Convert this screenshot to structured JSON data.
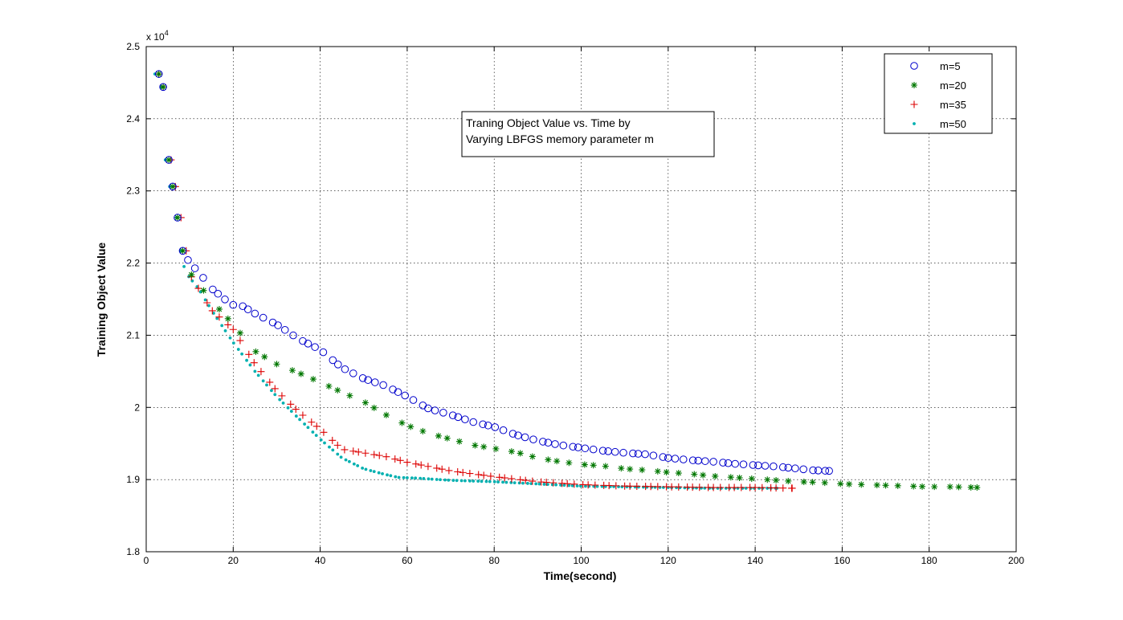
{
  "chart_data": {
    "type": "scatter",
    "title": "",
    "xlabel": "Time(second)",
    "ylabel": "Training Object Value",
    "xlim": [
      0,
      200
    ],
    "ylim": [
      18000,
      25000
    ],
    "x_ticks": [
      0,
      20,
      40,
      60,
      80,
      100,
      120,
      140,
      160,
      180,
      200
    ],
    "y_ticks": [
      18000,
      19000,
      20000,
      21000,
      22000,
      23000,
      24000,
      25000
    ],
    "x_tick_labels": [
      "0",
      "20",
      "40",
      "60",
      "80",
      "100",
      "120",
      "140",
      "160",
      "180",
      "200"
    ],
    "y_tick_labels": [
      "1.8",
      "1.9",
      "2",
      "2.1",
      "2.2",
      "2.3",
      "2.4",
      "2.5"
    ],
    "y_exponent_label": "x 10",
    "y_exponent_power": "4",
    "grid": true,
    "legend_position": "top-right",
    "annotation_lines": [
      "Traning Object Value vs. Time by",
      "Varying LBFGS memory parameter m"
    ],
    "series": [
      {
        "name": "m=5",
        "marker": "circle",
        "color": "#0000cc",
        "control_points": [
          [
            2.9,
            24620
          ],
          [
            3.9,
            24440
          ],
          [
            5.2,
            23430
          ],
          [
            6.1,
            23060
          ],
          [
            7.2,
            22630
          ],
          [
            8.4,
            22170
          ],
          [
            10.0,
            22000
          ],
          [
            12.0,
            21880
          ],
          [
            15.0,
            21650
          ],
          [
            18.0,
            21500
          ],
          [
            20.0,
            21420
          ],
          [
            22.0,
            21410
          ],
          [
            25.0,
            21300
          ],
          [
            30.0,
            21150
          ],
          [
            35.0,
            20950
          ],
          [
            40.0,
            20800
          ],
          [
            45.0,
            20550
          ],
          [
            50.0,
            20400
          ],
          [
            55.0,
            20300
          ],
          [
            60.0,
            20150
          ],
          [
            65.0,
            19980
          ],
          [
            70.0,
            19900
          ],
          [
            75.0,
            19800
          ],
          [
            80.0,
            19730
          ],
          [
            85.0,
            19620
          ],
          [
            90.0,
            19540
          ],
          [
            95.0,
            19480
          ],
          [
            100.0,
            19440
          ],
          [
            105.0,
            19400
          ],
          [
            110.0,
            19370
          ],
          [
            115.0,
            19350
          ],
          [
            120.0,
            19300
          ],
          [
            125.0,
            19270
          ],
          [
            130.0,
            19250
          ],
          [
            135.0,
            19220
          ],
          [
            140.0,
            19200
          ],
          [
            145.0,
            19180
          ],
          [
            150.0,
            19150
          ],
          [
            153.0,
            19130
          ],
          [
            157.0,
            19120
          ]
        ],
        "spacing": [
          1.2,
          1.6,
          1.9,
          2.2
        ]
      },
      {
        "name": "m=20",
        "marker": "star",
        "color": "#007700",
        "control_points": [
          [
            2.9,
            24620
          ],
          [
            3.9,
            24440
          ],
          [
            5.2,
            23430
          ],
          [
            6.1,
            23060
          ],
          [
            7.2,
            22630
          ],
          [
            8.4,
            22170
          ],
          [
            10.0,
            21870
          ],
          [
            15.0,
            21480
          ],
          [
            20.0,
            21150
          ],
          [
            25.0,
            20780
          ],
          [
            30.0,
            20600
          ],
          [
            35.0,
            20480
          ],
          [
            40.0,
            20350
          ],
          [
            45.0,
            20210
          ],
          [
            50.0,
            20080
          ],
          [
            55.0,
            19900
          ],
          [
            60.0,
            19750
          ],
          [
            65.0,
            19640
          ],
          [
            70.0,
            19560
          ],
          [
            75.0,
            19480
          ],
          [
            80.0,
            19430
          ],
          [
            85.0,
            19380
          ],
          [
            90.0,
            19300
          ],
          [
            95.0,
            19250
          ],
          [
            100.0,
            19210
          ],
          [
            105.0,
            19190
          ],
          [
            110.0,
            19150
          ],
          [
            115.0,
            19130
          ],
          [
            120.0,
            19100
          ],
          [
            125.0,
            19080
          ],
          [
            130.0,
            19050
          ],
          [
            135.0,
            19030
          ],
          [
            140.0,
            19010
          ],
          [
            145.0,
            18990
          ],
          [
            150.0,
            18970
          ],
          [
            155.0,
            18960
          ],
          [
            160.0,
            18940
          ],
          [
            165.0,
            18930
          ],
          [
            170.0,
            18920
          ],
          [
            175.0,
            18910
          ],
          [
            180.0,
            18900
          ],
          [
            185.0,
            18900
          ],
          [
            191.0,
            18890
          ]
        ],
        "spacing": [
          2.0,
          2.8,
          3.6
        ]
      },
      {
        "name": "m=35",
        "marker": "plus",
        "color": "#dd0000",
        "control_points": [
          [
            2.9,
            24620
          ],
          [
            3.9,
            24440
          ],
          [
            5.7,
            23430
          ],
          [
            6.7,
            23060
          ],
          [
            8.0,
            22630
          ],
          [
            9.2,
            22170
          ],
          [
            10.0,
            21850
          ],
          [
            15.0,
            21350
          ],
          [
            20.0,
            21080
          ],
          [
            25.0,
            20600
          ],
          [
            30.0,
            20230
          ],
          [
            35.0,
            19940
          ],
          [
            40.0,
            19700
          ],
          [
            45.0,
            19420
          ],
          [
            50.0,
            19370
          ],
          [
            55.0,
            19320
          ],
          [
            60.0,
            19240
          ],
          [
            65.0,
            19180
          ],
          [
            70.0,
            19120
          ],
          [
            75.0,
            19080
          ],
          [
            80.0,
            19040
          ],
          [
            90.0,
            18970
          ],
          [
            100.0,
            18930
          ],
          [
            110.0,
            18910
          ],
          [
            120.0,
            18900
          ],
          [
            130.0,
            18890
          ],
          [
            140.0,
            18890
          ],
          [
            148.5,
            18880
          ]
        ],
        "spacing": [
          1.2,
          1.6,
          2.0
        ]
      },
      {
        "name": "m=50",
        "marker": "dot",
        "color": "#00b0b0",
        "control_points": [
          [
            2.0,
            24620
          ],
          [
            3.4,
            24440
          ],
          [
            4.4,
            23430
          ],
          [
            5.4,
            23060
          ],
          [
            7.0,
            22630
          ],
          [
            7.9,
            22170
          ],
          [
            9.0,
            21870
          ],
          [
            12.0,
            21650
          ],
          [
            15.0,
            21350
          ],
          [
            20.0,
            20900
          ],
          [
            25.0,
            20500
          ],
          [
            30.0,
            20150
          ],
          [
            35.0,
            19850
          ],
          [
            40.0,
            19560
          ],
          [
            45.0,
            19300
          ],
          [
            50.0,
            19150
          ],
          [
            55.0,
            19070
          ],
          [
            58.0,
            19030
          ],
          [
            62.0,
            19020
          ],
          [
            70.0,
            18990
          ],
          [
            80.0,
            18970
          ],
          [
            90.0,
            18940
          ],
          [
            100.0,
            18910
          ],
          [
            110.0,
            18900
          ],
          [
            120.0,
            18890
          ],
          [
            130.0,
            18880
          ],
          [
            140.0,
            18880
          ],
          [
            145.0,
            18880
          ]
        ],
        "spacing": [
          0.8,
          1.1
        ]
      }
    ]
  }
}
